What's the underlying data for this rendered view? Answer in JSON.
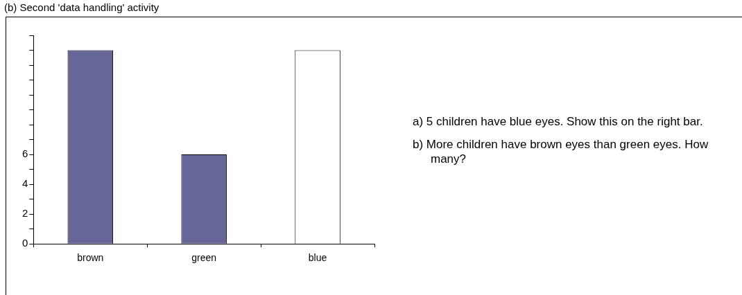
{
  "chart_data": {
    "type": "bar",
    "title": "(b) Second 'data handling' activity",
    "categories": [
      "brown",
      "green",
      "blue"
    ],
    "values": [
      13,
      6,
      13
    ],
    "colors": [
      "#666699",
      "#666699",
      "#ffffff"
    ],
    "ylim": [
      0,
      14
    ],
    "yticks": [
      0,
      {
        "value": 1,
        "label": null
      },
      2,
      {
        "value": 3,
        "label": null
      },
      4,
      {
        "value": 5,
        "label": null
      },
      6,
      {
        "value": 7,
        "label": null
      },
      {
        "value": 8,
        "label": null
      },
      {
        "value": 9,
        "label": null
      },
      {
        "value": 10,
        "label": null
      },
      {
        "value": 11,
        "label": null
      },
      {
        "value": 12,
        "label": null
      },
      {
        "value": 13,
        "label": null
      },
      {
        "value": 14,
        "label": null
      }
    ],
    "grid": false,
    "legend": false,
    "annotations": [
      "a)  5 children have blue eyes. Show this on the right bar.",
      "b)  More children have brown eyes than green eyes. How many?"
    ]
  }
}
